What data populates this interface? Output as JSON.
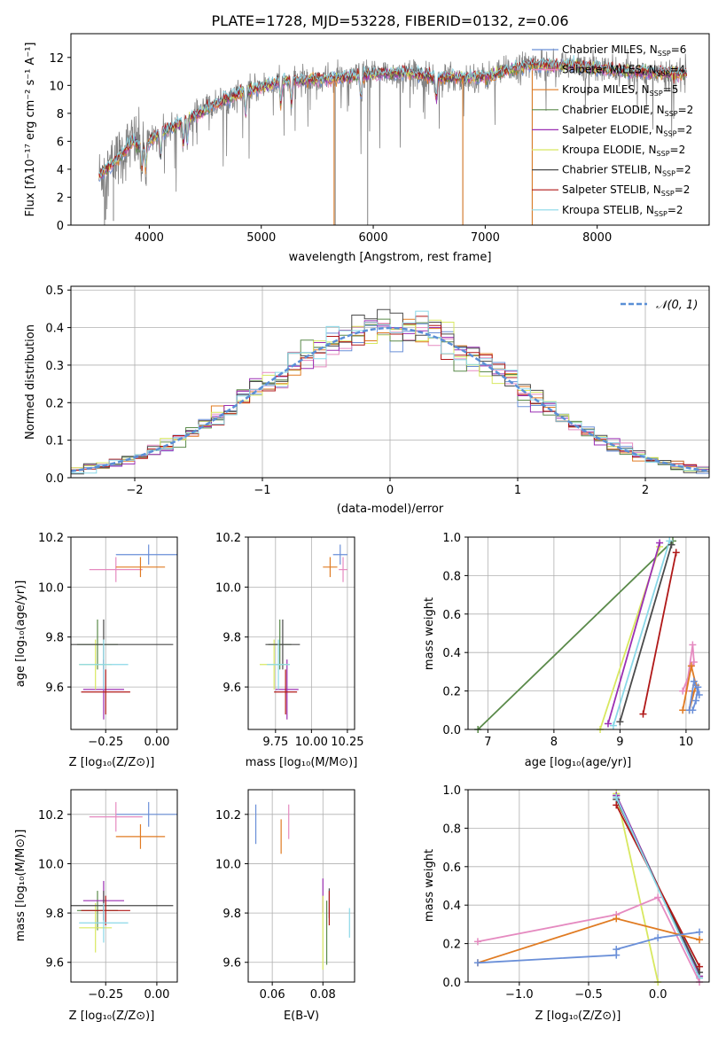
{
  "colors": {
    "Chabrier MILES": "#6a8fd8",
    "Salpeter MILES": "#e58ac0",
    "Kroupa MILES": "#e07b22",
    "Chabrier ELODIE": "#5a8a4a",
    "Salpeter ELODIE": "#9b2fb3",
    "Kroupa ELODIE": "#d8e860",
    "Chabrier STELIB": "#4a4a4a",
    "Salpeter STELIB": "#b01818",
    "Kroupa STELIB": "#8ad8e8",
    "data": "#808080",
    "normal": "#5a8fd6"
  },
  "chart_data": [
    {
      "id": "spectrum",
      "type": "line",
      "title": "PLATE=1728, MJD=53228, FIBERID=0132, z=0.06",
      "xlabel": "wavelength [Angstrom, rest frame]",
      "ylabel": "Flux [fλ10⁻¹⁷ erg cm⁻² s⁻¹ A⁻¹]",
      "xlim": [
        3300,
        9000
      ],
      "ylim": [
        0,
        13.7
      ],
      "xticks": [
        "4000",
        "5000",
        "6000",
        "7000",
        "8000"
      ],
      "yticks": [
        "0",
        "2",
        "4",
        "6",
        "8",
        "10",
        "12"
      ],
      "legend": {
        "placement": "top-right",
        "entries": [
          {
            "model": "Chabrier MILES",
            "nssp": "6"
          },
          {
            "model": "Salpeter MILES",
            "nssp": "4"
          },
          {
            "model": "Kroupa MILES",
            "nssp": "5"
          },
          {
            "model": "Chabrier ELODIE",
            "nssp": "2"
          },
          {
            "model": "Salpeter ELODIE",
            "nssp": "2"
          },
          {
            "model": "Kroupa ELODIE",
            "nssp": "2"
          },
          {
            "model": "Chabrier STELIB",
            "nssp": "2"
          },
          {
            "model": "Salpeter STELIB",
            "nssp": "2"
          },
          {
            "model": "Kroupa STELIB",
            "nssp": "2"
          }
        ]
      },
      "continuum": [
        [
          3550,
          3.5
        ],
        [
          3700,
          4.6
        ],
        [
          3850,
          6.0
        ],
        [
          3950,
          5.5
        ],
        [
          4050,
          6.4
        ],
        [
          4200,
          7.0
        ],
        [
          4400,
          7.8
        ],
        [
          4600,
          8.7
        ],
        [
          4800,
          9.4
        ],
        [
          5000,
          9.9
        ],
        [
          5200,
          10.3
        ],
        [
          5500,
          10.4
        ],
        [
          5800,
          10.6
        ],
        [
          6000,
          10.8
        ],
        [
          6300,
          10.9
        ],
        [
          6600,
          10.5
        ],
        [
          7000,
          10.6
        ],
        [
          7400,
          11.5
        ],
        [
          7800,
          11.4
        ],
        [
          8200,
          11.0
        ],
        [
          8800,
          10.8
        ]
      ],
      "data_dropouts": [
        [
          3600,
          0
        ],
        [
          3680,
          0.3
        ],
        [
          5660,
          0
        ],
        [
          5950,
          0
        ],
        [
          6800,
          0
        ],
        [
          7420,
          0
        ]
      ]
    },
    {
      "id": "residuals",
      "type": "histogram",
      "xlabel": "(data-model)/error",
      "ylabel": "Normed distribution",
      "xlim": [
        -2.5,
        2.5
      ],
      "ylim": [
        0,
        0.51
      ],
      "xticks": [
        "−2",
        "−1",
        "0",
        "1",
        "2"
      ],
      "yticks": [
        "0.0",
        "0.1",
        "0.2",
        "0.3",
        "0.4",
        "0.5"
      ],
      "grid": true,
      "legend": {
        "placement": "top-right",
        "label": "𝒩(0, 1)"
      },
      "bin_width": 0.1
    },
    {
      "id": "age_vs_Z",
      "type": "errorbar",
      "xlabel": "Z [log₁₀(Z/Z⊙)]",
      "ylabel": "age  [log₁₀(age/yr)]",
      "xlim": [
        -0.42,
        0.1
      ],
      "ylim": [
        9.43,
        10.2
      ],
      "xticks": [
        {
          "v": -0.25,
          "t": "−0.25"
        },
        {
          "v": 0.0,
          "t": "0.00"
        }
      ],
      "yticks": [
        {
          "v": 9.6,
          "t": "9.6"
        },
        {
          "v": 9.8,
          "t": "9.8"
        },
        {
          "v": 10.0,
          "t": "10.0"
        },
        {
          "v": 10.2,
          "t": "10.2"
        }
      ],
      "points": [
        {
          "model": "Chabrier MILES",
          "x": -0.04,
          "xerr": 0.16,
          "y": 10.13,
          "yerr": 0.04
        },
        {
          "model": "Salpeter MILES",
          "x": -0.2,
          "xerr": 0.13,
          "y": 10.07,
          "yerr": 0.05
        },
        {
          "model": "Kroupa MILES",
          "x": -0.08,
          "xerr": 0.12,
          "y": 10.08,
          "yerr": 0.04
        },
        {
          "model": "Chabrier ELODIE",
          "x": -0.29,
          "xerr": 0.1,
          "y": 9.77,
          "yerr": 0.1
        },
        {
          "model": "Salpeter ELODIE",
          "x": -0.26,
          "xerr": 0.1,
          "y": 9.59,
          "yerr": 0.12
        },
        {
          "model": "Kroupa ELODIE",
          "x": -0.3,
          "xerr": 0.08,
          "y": 9.69,
          "yerr": 0.1
        },
        {
          "model": "Chabrier STELIB",
          "x": -0.26,
          "xerr": 0.34,
          "y": 9.77,
          "yerr": 0.1
        },
        {
          "model": "Salpeter STELIB",
          "x": -0.25,
          "xerr": 0.12,
          "y": 9.58,
          "yerr": 0.09
        },
        {
          "model": "Kroupa STELIB",
          "x": -0.26,
          "xerr": 0.12,
          "y": 9.69,
          "yerr": 0.1
        }
      ]
    },
    {
      "id": "age_vs_mass",
      "type": "errorbar",
      "xlabel": "mass [log₁₀(M/M⊙)]",
      "ylabel": "",
      "xlim": [
        9.56,
        10.3
      ],
      "ylim": [
        9.43,
        10.2
      ],
      "xticks": [
        {
          "v": 9.75,
          "t": "9.75"
        },
        {
          "v": 10.0,
          "t": "10.00"
        },
        {
          "v": 10.25,
          "t": "10.25"
        }
      ],
      "yticks": [
        {
          "v": 9.6,
          "t": "9.6"
        },
        {
          "v": 9.8,
          "t": "9.8"
        },
        {
          "v": 10.0,
          "t": "10.0"
        },
        {
          "v": 10.2,
          "t": "10.2"
        }
      ],
      "points": [
        {
          "model": "Chabrier MILES",
          "x": 10.2,
          "xerr": 0.05,
          "y": 10.13,
          "yerr": 0.04
        },
        {
          "model": "Salpeter MILES",
          "x": 10.22,
          "xerr": 0.03,
          "y": 10.07,
          "yerr": 0.05
        },
        {
          "model": "Kroupa MILES",
          "x": 10.13,
          "xerr": 0.05,
          "y": 10.08,
          "yerr": 0.04
        },
        {
          "model": "Chabrier ELODIE",
          "x": 9.78,
          "xerr": 0.08,
          "y": 9.77,
          "yerr": 0.1
        },
        {
          "model": "Salpeter ELODIE",
          "x": 9.83,
          "xerr": 0.08,
          "y": 9.59,
          "yerr": 0.12
        },
        {
          "model": "Kroupa ELODIE",
          "x": 9.74,
          "xerr": 0.1,
          "y": 9.69,
          "yerr": 0.1
        },
        {
          "model": "Chabrier STELIB",
          "x": 9.8,
          "xerr": 0.12,
          "y": 9.77,
          "yerr": 0.1
        },
        {
          "model": "Salpeter STELIB",
          "x": 9.82,
          "xerr": 0.08,
          "y": 9.58,
          "yerr": 0.09
        },
        {
          "model": "Kroupa STELIB",
          "x": 9.77,
          "xerr": 0.08,
          "y": 9.69,
          "yerr": 0.1
        }
      ]
    },
    {
      "id": "weight_vs_age",
      "type": "line",
      "xlabel": "age  [log₁₀(age/yr)]",
      "ylabel": "mass weight",
      "xlim": [
        6.7,
        10.35
      ],
      "ylim": [
        0,
        1.0
      ],
      "xticks": [
        {
          "v": 7,
          "t": "7"
        },
        {
          "v": 8,
          "t": "8"
        },
        {
          "v": 9,
          "t": "9"
        },
        {
          "v": 10,
          "t": "10"
        }
      ],
      "yticks": [
        {
          "v": 0,
          "t": "0.0"
        },
        {
          "v": 0.2,
          "t": "0.2"
        },
        {
          "v": 0.4,
          "t": "0.4"
        },
        {
          "v": 0.6,
          "t": "0.6"
        },
        {
          "v": 0.8,
          "t": "0.8"
        },
        {
          "v": 1.0,
          "t": "1.0"
        }
      ],
      "series": [
        {
          "model": "Chabrier ELODIE",
          "points": [
            [
              6.85,
              0.0
            ],
            [
              9.8,
              0.98
            ]
          ]
        },
        {
          "model": "Kroupa ELODIE",
          "points": [
            [
              8.7,
              0.0
            ],
            [
              9.6,
              0.95
            ]
          ]
        },
        {
          "model": "Salpeter ELODIE",
          "points": [
            [
              8.82,
              0.03
            ],
            [
              9.6,
              0.97
            ]
          ]
        },
        {
          "model": "Kroupa STELIB",
          "points": [
            [
              8.9,
              0.02
            ],
            [
              9.75,
              0.98
            ]
          ]
        },
        {
          "model": "Chabrier STELIB",
          "points": [
            [
              9.0,
              0.04
            ],
            [
              9.78,
              0.96
            ]
          ]
        },
        {
          "model": "Salpeter STELIB",
          "points": [
            [
              9.35,
              0.08
            ],
            [
              9.85,
              0.92
            ]
          ]
        },
        {
          "model": "Salpeter MILES",
          "points": [
            [
              10.0,
              0.2
            ],
            [
              10.1,
              0.44
            ],
            [
              10.12,
              0.35
            ],
            [
              9.95,
              0.2
            ]
          ]
        },
        {
          "model": "Kroupa MILES",
          "points": [
            [
              9.95,
              0.1
            ],
            [
              10.08,
              0.33
            ],
            [
              10.15,
              0.23
            ],
            [
              10.05,
              0.1
            ],
            [
              10.1,
              0.2
            ]
          ]
        },
        {
          "model": "Chabrier MILES",
          "points": [
            [
              10.05,
              0.1
            ],
            [
              10.12,
              0.25
            ],
            [
              10.2,
              0.18
            ],
            [
              10.18,
              0.22
            ],
            [
              10.15,
              0.15
            ],
            [
              10.1,
              0.1
            ]
          ]
        }
      ]
    },
    {
      "id": "mass_vs_Z",
      "type": "errorbar",
      "xlabel": "Z [log₁₀(Z/Z⊙)]",
      "ylabel": "mass [log₁₀(M/M⊙)]",
      "xlim": [
        -0.42,
        0.1
      ],
      "ylim": [
        9.52,
        10.3
      ],
      "xticks": [
        {
          "v": -0.25,
          "t": "−0.25"
        },
        {
          "v": 0.0,
          "t": "0.00"
        }
      ],
      "yticks": [
        {
          "v": 9.6,
          "t": "9.6"
        },
        {
          "v": 9.8,
          "t": "9.8"
        },
        {
          "v": 10.0,
          "t": "10.0"
        },
        {
          "v": 10.2,
          "t": "10.2"
        }
      ],
      "points": [
        {
          "model": "Chabrier MILES",
          "x": -0.04,
          "xerr": 0.16,
          "y": 10.2,
          "yerr": 0.05
        },
        {
          "model": "Salpeter MILES",
          "x": -0.2,
          "xerr": 0.13,
          "y": 10.19,
          "yerr": 0.06
        },
        {
          "model": "Kroupa MILES",
          "x": -0.08,
          "xerr": 0.12,
          "y": 10.11,
          "yerr": 0.05
        },
        {
          "model": "Chabrier ELODIE",
          "x": -0.29,
          "xerr": 0.1,
          "y": 9.81,
          "yerr": 0.08
        },
        {
          "model": "Salpeter ELODIE",
          "x": -0.26,
          "xerr": 0.1,
          "y": 9.85,
          "yerr": 0.08
        },
        {
          "model": "Kroupa ELODIE",
          "x": -0.3,
          "xerr": 0.08,
          "y": 9.74,
          "yerr": 0.1
        },
        {
          "model": "Chabrier STELIB",
          "x": -0.26,
          "xerr": 0.34,
          "y": 9.83,
          "yerr": 0.06
        },
        {
          "model": "Salpeter STELIB",
          "x": -0.25,
          "xerr": 0.12,
          "y": 9.81,
          "yerr": 0.06
        },
        {
          "model": "Kroupa STELIB",
          "x": -0.26,
          "xerr": 0.12,
          "y": 9.76,
          "yerr": 0.08
        }
      ]
    },
    {
      "id": "mass_vs_EBV",
      "type": "errorbar",
      "xlabel": "E(B-V)",
      "ylabel": "",
      "xlim": [
        0.0505,
        0.0925
      ],
      "ylim": [
        9.52,
        10.3
      ],
      "xticks": [
        {
          "v": 0.06,
          "t": "0.06"
        },
        {
          "v": 0.08,
          "t": "0.08"
        }
      ],
      "yticks": [
        {
          "v": 9.6,
          "t": "9.6"
        },
        {
          "v": 9.8,
          "t": "9.8"
        },
        {
          "v": 10.0,
          "t": "10.0"
        },
        {
          "v": 10.2,
          "t": "10.2"
        }
      ],
      "points": [
        {
          "model": "Chabrier MILES",
          "x": 0.0535,
          "xerr": 0,
          "y": 10.16,
          "yerr": 0.08
        },
        {
          "model": "Salpeter MILES",
          "x": 0.0665,
          "xerr": 0,
          "y": 10.17,
          "yerr": 0.07
        },
        {
          "model": "Kroupa MILES",
          "x": 0.0635,
          "xerr": 0,
          "y": 10.11,
          "yerr": 0.07
        },
        {
          "model": "Chabrier ELODIE",
          "x": 0.0815,
          "xerr": 0,
          "y": 9.72,
          "yerr": 0.13
        },
        {
          "model": "Salpeter ELODIE",
          "x": 0.08,
          "xerr": 0,
          "y": 9.87,
          "yerr": 0.07
        },
        {
          "model": "Kroupa ELODIE",
          "x": 0.08,
          "xerr": 0,
          "y": 9.72,
          "yerr": 0.15
        },
        {
          "model": "Chabrier STELIB",
          "x": 0.0825,
          "xerr": 0,
          "y": 9.84,
          "yerr": 0.06
        },
        {
          "model": "Salpeter STELIB",
          "x": 0.0825,
          "xerr": 0,
          "y": 9.82,
          "yerr": 0.07
        },
        {
          "model": "Kroupa STELIB",
          "x": 0.0905,
          "xerr": 0,
          "y": 9.76,
          "yerr": 0.06
        }
      ]
    },
    {
      "id": "weight_vs_Z",
      "type": "line",
      "xlabel": "Z [log₁₀(Z/Z⊙)]",
      "ylabel": "mass weight",
      "xlim": [
        -1.37,
        0.37
      ],
      "ylim": [
        0,
        1.0
      ],
      "xticks": [
        {
          "v": -1.0,
          "t": "−1.0"
        },
        {
          "v": -0.5,
          "t": "−0.5"
        },
        {
          "v": 0.0,
          "t": "0.0"
        }
      ],
      "yticks": [
        {
          "v": 0,
          "t": "0.0"
        },
        {
          "v": 0.2,
          "t": "0.2"
        },
        {
          "v": 0.4,
          "t": "0.4"
        },
        {
          "v": 0.6,
          "t": "0.6"
        },
        {
          "v": 0.8,
          "t": "0.8"
        },
        {
          "v": 1.0,
          "t": "1.0"
        }
      ],
      "series": [
        {
          "model": "Kroupa ELODIE",
          "points": [
            [
              -0.3,
              0.98
            ],
            [
              0.0,
              0.0
            ]
          ]
        },
        {
          "model": "Chabrier ELODIE",
          "points": [
            [
              -0.3,
              0.97
            ],
            [
              0.3,
              0.03
            ]
          ]
        },
        {
          "model": "Salpeter ELODIE",
          "points": [
            [
              -0.3,
              0.97
            ],
            [
              0.3,
              0.03
            ]
          ]
        },
        {
          "model": "Chabrier STELIB",
          "points": [
            [
              -0.3,
              0.95
            ],
            [
              0.3,
              0.05
            ]
          ]
        },
        {
          "model": "Salpeter STELIB",
          "points": [
            [
              -0.3,
              0.92
            ],
            [
              0.3,
              0.08
            ]
          ]
        },
        {
          "model": "Kroupa STELIB",
          "points": [
            [
              -0.3,
              0.96
            ],
            [
              0.3,
              0.02
            ]
          ]
        },
        {
          "model": "Salpeter MILES",
          "points": [
            [
              -1.3,
              0.21
            ],
            [
              -0.3,
              0.35
            ],
            [
              0.0,
              0.44
            ],
            [
              0.3,
              0.0
            ]
          ]
        },
        {
          "model": "Kroupa MILES",
          "points": [
            [
              -1.3,
              0.1
            ],
            [
              -0.3,
              0.33
            ],
            [
              0.3,
              0.22
            ]
          ]
        },
        {
          "model": "Chabrier MILES",
          "points": [
            [
              -1.3,
              0.1
            ],
            [
              -0.3,
              0.14
            ],
            [
              -0.3,
              0.17
            ],
            [
              0.0,
              0.23
            ],
            [
              0.3,
              0.26
            ]
          ]
        }
      ]
    }
  ]
}
